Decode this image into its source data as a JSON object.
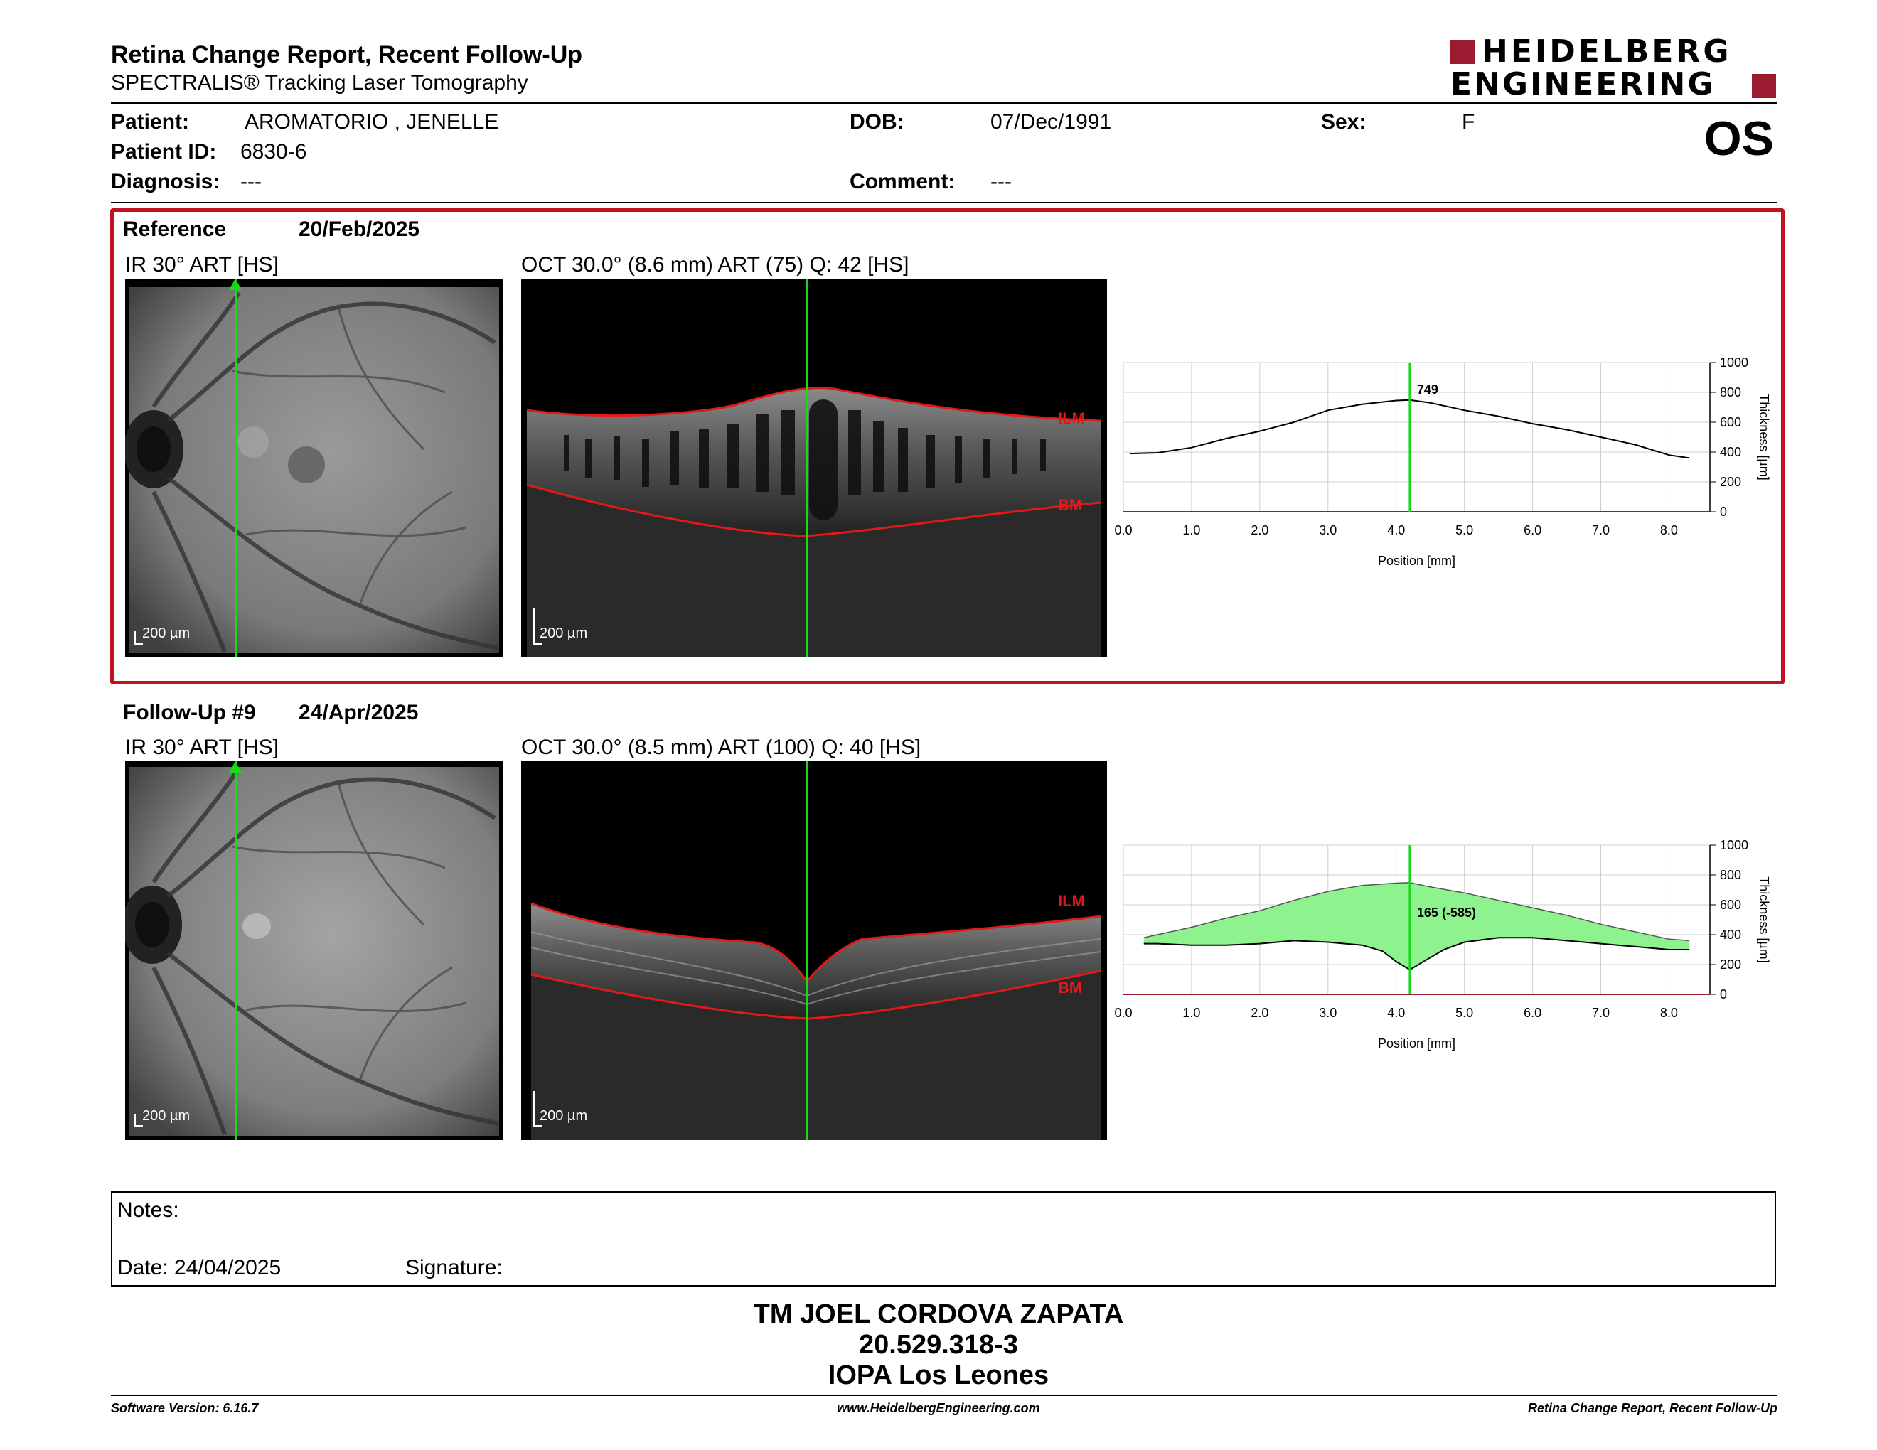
{
  "header": {
    "title": "Retina Change Report, Recent Follow-Up",
    "subtitle": "SPECTRALIS® Tracking Laser Tomography",
    "logo_line1": "HEIDELBERG",
    "logo_line2": "ENGINEERING",
    "eye": "OS"
  },
  "patient": {
    "name_label": "Patient:",
    "name": "AROMATORIO , JENELLE",
    "id_label": "Patient ID:",
    "id": "6830-6",
    "diagnosis_label": "Diagnosis:",
    "diagnosis": "---",
    "dob_label": "DOB:",
    "dob": "07/Dec/1991",
    "comment_label": "Comment:",
    "comment": "---",
    "sex_label": "Sex:",
    "sex": "F"
  },
  "reference": {
    "label": "Reference",
    "date": "20/Feb/2025",
    "ir_title": "IR 30° ART [HS]",
    "oct_title": "OCT 30.0° (8.6 mm) ART (75) Q: 42 [HS]",
    "scale": "200 µm",
    "ilm": "ILM",
    "bm": "BM"
  },
  "followup": {
    "label": "Follow-Up #9",
    "date": "24/Apr/2025",
    "ir_title": "IR 30° ART [HS]",
    "oct_title": "OCT 30.0° (8.5 mm) ART (100) Q: 40 [HS]",
    "scale": "200 µm",
    "ilm": "ILM",
    "bm": "BM"
  },
  "chart_data": [
    {
      "type": "line",
      "xlabel": "Position [mm]",
      "ylabel": "Thickness [µm]",
      "xlim": [
        0,
        8.6
      ],
      "ylim": [
        0,
        1000
      ],
      "xticks": [
        "0.0",
        "1.0",
        "2.0",
        "3.0",
        "4.0",
        "5.0",
        "6.0",
        "7.0",
        "8.0"
      ],
      "yticks": [
        "0",
        "200",
        "400",
        "600",
        "800",
        "1000"
      ],
      "grid": true,
      "marker_x": 4.2,
      "marker_label": "749",
      "series": [
        {
          "x": [
            0.1,
            0.5,
            1.0,
            1.5,
            2.0,
            2.5,
            3.0,
            3.5,
            4.0,
            4.2,
            4.5,
            5.0,
            5.5,
            6.0,
            6.5,
            7.0,
            7.5,
            8.0,
            8.3
          ],
          "values": [
            390,
            395,
            430,
            490,
            540,
            600,
            680,
            720,
            745,
            749,
            730,
            680,
            640,
            590,
            550,
            500,
            450,
            380,
            360
          ]
        }
      ]
    },
    {
      "type": "area",
      "xlabel": "Position [mm]",
      "ylabel": "Thickness [µm]",
      "xlim": [
        0,
        8.6
      ],
      "ylim": [
        0,
        1000
      ],
      "xticks": [
        "0.0",
        "1.0",
        "2.0",
        "3.0",
        "4.0",
        "5.0",
        "6.0",
        "7.0",
        "8.0"
      ],
      "yticks": [
        "0",
        "200",
        "400",
        "600",
        "800",
        "1000"
      ],
      "grid": true,
      "marker_x": 4.2,
      "marker_label": "165 (-585)",
      "series": [
        {
          "x": [
            0.3,
            0.5,
            1.0,
            1.5,
            2.0,
            2.5,
            3.0,
            3.5,
            4.0,
            4.2,
            4.5,
            5.0,
            5.5,
            6.0,
            6.5,
            7.0,
            7.5,
            8.0,
            8.3
          ],
          "values": [
            380,
            400,
            450,
            510,
            560,
            630,
            690,
            730,
            745,
            749,
            720,
            680,
            630,
            580,
            530,
            470,
            420,
            370,
            360
          ]
        },
        {
          "x": [
            0.3,
            0.5,
            1.0,
            1.5,
            2.0,
            2.5,
            3.0,
            3.5,
            3.8,
            4.0,
            4.2,
            4.4,
            4.7,
            5.0,
            5.5,
            6.0,
            6.5,
            7.0,
            7.5,
            8.0,
            8.3
          ],
          "values": [
            340,
            340,
            330,
            330,
            340,
            360,
            350,
            330,
            290,
            220,
            165,
            220,
            300,
            350,
            380,
            380,
            360,
            340,
            320,
            300,
            300
          ]
        }
      ]
    }
  ],
  "notes": {
    "label": "Notes:",
    "date_label": "Date: 24/04/2025",
    "signature_label": "Signature:"
  },
  "signer": {
    "name": "TM JOEL CORDOVA ZAPATA",
    "id": "20.529.318-3",
    "org": "IOPA Los Leones"
  },
  "footer": {
    "software": "Software Version: 6.16.7",
    "website": "www.HeidelbergEngineering.com",
    "report": "Retina Change Report, Recent Follow-Up"
  }
}
